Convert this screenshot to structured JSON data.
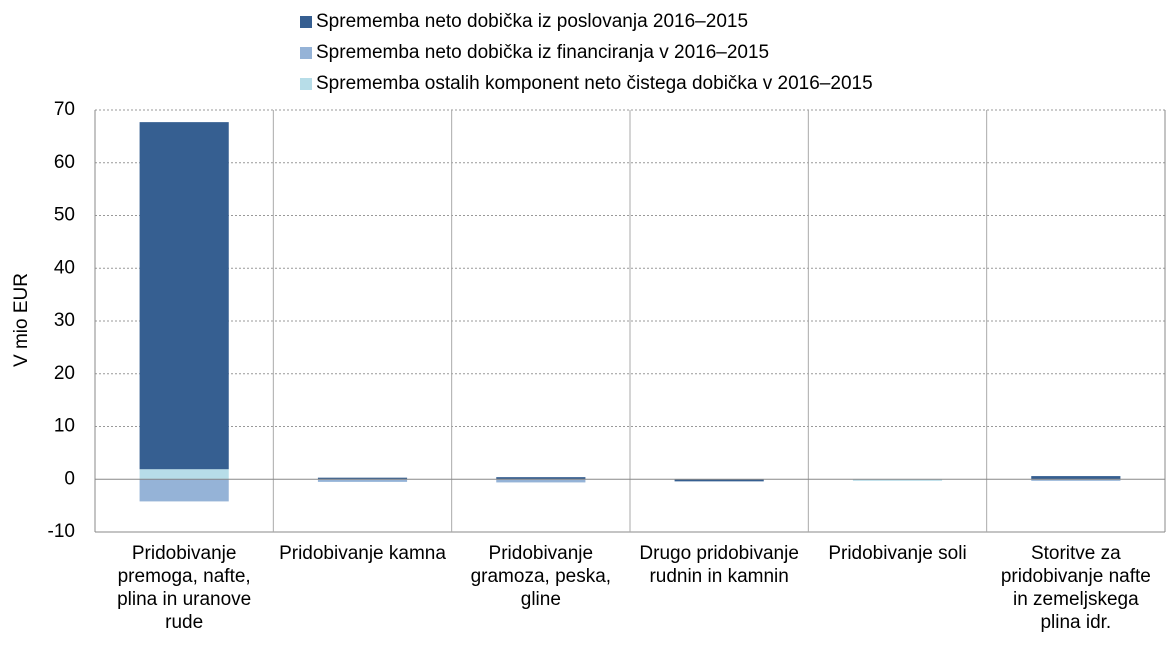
{
  "chart_data": {
    "type": "bar",
    "stacked": true,
    "ylabel": "V mio EUR",
    "categories": [
      "Pridobivanje premoga, nafte, plina in uranove rude",
      "Pridobivanje kamna",
      "Pridobivanje gramoza, peska, gline",
      "Drugo pridobivanje rudnin in kamnin",
      "Pridobivanje soli",
      "Storitve za pridobivanje nafte in zemeljskega plina idr."
    ],
    "series": [
      {
        "name": "Sprememba neto dobička iz poslovanja 2016–2015",
        "color": "#365f91",
        "values": [
          65.8,
          0.3,
          0.4,
          -0.4,
          0,
          0.6
        ]
      },
      {
        "name": "Sprememba neto dobička iz financiranja v 2016–2015",
        "color": "#95b3d7",
        "values": [
          -4.2,
          -0.5,
          -0.6,
          0,
          0,
          -0.3
        ]
      },
      {
        "name": "Sprememba ostalih komponent neto čistega dobička v 2016–2015",
        "color": "#b7dde8",
        "values": [
          1.9,
          0,
          0,
          0,
          -0.3,
          0
        ]
      }
    ],
    "ylim": [
      -10,
      70
    ],
    "yticks": [
      -10,
      0,
      10,
      20,
      30,
      40,
      50,
      60,
      70
    ],
    "grid": true
  }
}
